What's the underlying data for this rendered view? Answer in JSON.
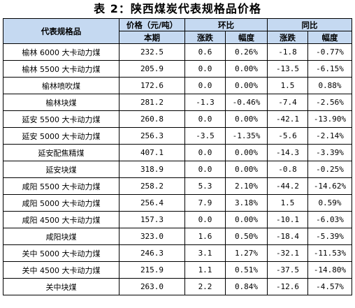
{
  "title": "表 2：陕西煤炭代表规格品价格",
  "header": {
    "col_name": "代表规格品",
    "col_price": "价格（元/吨）",
    "col_price_sub": "本期",
    "group_mom": "环比",
    "group_yoy": "同比",
    "sub_change": "涨跌",
    "sub_pct": "幅度"
  },
  "rows": [
    {
      "name": "榆林 6000 大卡动力煤",
      "price": "232.5",
      "mom_chg": "0.6",
      "mom_pct": "0.26%",
      "yoy_chg": "-1.8",
      "yoy_pct": "-0.77%"
    },
    {
      "name": "榆林 5500 大卡动力煤",
      "price": "205.9",
      "mom_chg": "0.0",
      "mom_pct": "0.00%",
      "yoy_chg": "-13.5",
      "yoy_pct": "-6.15%"
    },
    {
      "name": "榆林喷吹煤",
      "price": "172.6",
      "mom_chg": "0.0",
      "mom_pct": "0.00%",
      "yoy_chg": "1.5",
      "yoy_pct": "0.88%"
    },
    {
      "name": "榆林块煤",
      "price": "281.2",
      "mom_chg": "-1.3",
      "mom_pct": "-0.46%",
      "yoy_chg": "-7.4",
      "yoy_pct": "-2.56%"
    },
    {
      "name": "延安 5500 大卡动力煤",
      "price": "260.8",
      "mom_chg": "0.0",
      "mom_pct": "0.00%",
      "yoy_chg": "-42.1",
      "yoy_pct": "-13.90%"
    },
    {
      "name": "延安 5000 大卡动力煤",
      "price": "256.3",
      "mom_chg": "-3.5",
      "mom_pct": "-1.35%",
      "yoy_chg": "-5.6",
      "yoy_pct": "-2.14%"
    },
    {
      "name": "延安配焦精煤",
      "price": "407.1",
      "mom_chg": "0.0",
      "mom_pct": "0.00%",
      "yoy_chg": "-14.3",
      "yoy_pct": "-3.39%"
    },
    {
      "name": "延安块煤",
      "price": "318.9",
      "mom_chg": "0.0",
      "mom_pct": "0.00%",
      "yoy_chg": "-0.8",
      "yoy_pct": "-0.25%"
    },
    {
      "name": "咸阳 5500 大卡动力煤",
      "price": "258.2",
      "mom_chg": "5.3",
      "mom_pct": "2.10%",
      "yoy_chg": "-44.2",
      "yoy_pct": "-14.62%"
    },
    {
      "name": "咸阳 5000 大卡动力煤",
      "price": "256.4",
      "mom_chg": "7.9",
      "mom_pct": "3.18%",
      "yoy_chg": "1.5",
      "yoy_pct": "0.59%"
    },
    {
      "name": "咸阳 4500 大卡动力煤",
      "price": "157.3",
      "mom_chg": "0.0",
      "mom_pct": "0.00%",
      "yoy_chg": "-10.1",
      "yoy_pct": "-6.03%"
    },
    {
      "name": "咸阳块煤",
      "price": "323.0",
      "mom_chg": "1.6",
      "mom_pct": "0.50%",
      "yoy_chg": "-18.4",
      "yoy_pct": "-5.39%"
    },
    {
      "name": "关中 5000 大卡动力煤",
      "price": "246.3",
      "mom_chg": "3.1",
      "mom_pct": "1.27%",
      "yoy_chg": "-32.1",
      "yoy_pct": "-11.53%"
    },
    {
      "name": "关中 4500 大卡动力煤",
      "price": "215.9",
      "mom_chg": "1.1",
      "mom_pct": "0.51%",
      "yoy_chg": "-37.5",
      "yoy_pct": "-14.80%"
    },
    {
      "name": "关中块煤",
      "price": "263.0",
      "mom_chg": "2.2",
      "mom_pct": "0.84%",
      "yoy_chg": "-12.6",
      "yoy_pct": "-4.57%"
    }
  ]
}
